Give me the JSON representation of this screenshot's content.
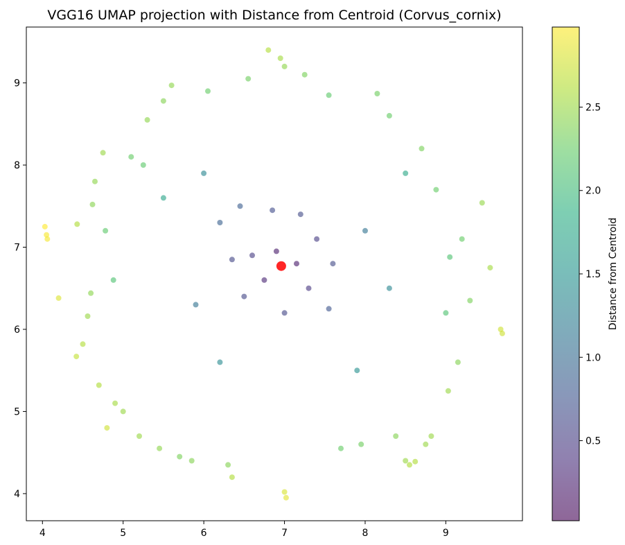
{
  "chart_data": {
    "type": "scatter",
    "title": "VGG16 UMAP projection with Distance from Centroid (Corvus_cornix)",
    "xlabel": "",
    "ylabel": "",
    "xlim": [
      3.8,
      9.95
    ],
    "ylim": [
      3.67,
      9.68
    ],
    "xticks": [
      4,
      5,
      6,
      7,
      8,
      9
    ],
    "yticks": [
      4,
      5,
      6,
      7,
      8,
      9
    ],
    "grid": false,
    "colormap": "viridis",
    "point_alpha": 0.6,
    "colorbar": {
      "label": "Distance from Centroid",
      "range": [
        0.02,
        2.98
      ],
      "ticks": [
        0.5,
        1.0,
        1.5,
        2.0,
        2.5
      ],
      "tick_labels": [
        "0.5",
        "1.0",
        "1.5",
        "2.0",
        "2.5"
      ]
    },
    "centroid": {
      "x": 6.96,
      "y": 6.77,
      "color": "#ff0000"
    },
    "series": [
      {
        "distribution": "approximately radial cloud around the centroid, color mapped to distance from centroid",
        "points": [
          [
            4.03,
            7.25,
            2.98
          ],
          [
            4.05,
            7.15,
            2.95
          ],
          [
            4.06,
            7.1,
            2.94
          ],
          [
            4.2,
            6.38,
            2.82
          ],
          [
            4.43,
            7.28,
            2.6
          ],
          [
            4.42,
            5.67,
            2.7
          ],
          [
            4.5,
            5.82,
            2.62
          ],
          [
            4.56,
            6.16,
            2.5
          ],
          [
            4.6,
            6.44,
            2.43
          ],
          [
            4.62,
            7.52,
            2.42
          ],
          [
            4.65,
            7.8,
            2.45
          ],
          [
            4.7,
            5.32,
            2.6
          ],
          [
            4.75,
            8.15,
            2.5
          ],
          [
            4.8,
            4.8,
            2.75
          ],
          [
            4.9,
            5.1,
            2.55
          ],
          [
            4.78,
            7.2,
            2.2
          ],
          [
            5.0,
            5.0,
            2.5
          ],
          [
            5.1,
            8.1,
            2.25
          ],
          [
            5.2,
            4.7,
            2.5
          ],
          [
            5.25,
            8.0,
            2.2
          ],
          [
            5.3,
            8.55,
            2.45
          ],
          [
            5.45,
            4.55,
            2.45
          ],
          [
            5.5,
            8.78,
            2.4
          ],
          [
            5.6,
            8.97,
            2.45
          ],
          [
            5.7,
            4.45,
            2.35
          ],
          [
            5.85,
            4.4,
            2.4
          ],
          [
            6.05,
            8.9,
            2.25
          ],
          [
            6.3,
            4.35,
            2.4
          ],
          [
            6.35,
            4.2,
            2.6
          ],
          [
            6.55,
            9.05,
            2.3
          ],
          [
            6.8,
            9.4,
            2.62
          ],
          [
            6.95,
            9.3,
            2.55
          ],
          [
            7.0,
            9.2,
            2.45
          ],
          [
            7.0,
            4.02,
            2.8
          ],
          [
            7.02,
            3.95,
            2.85
          ],
          [
            7.25,
            9.1,
            2.35
          ],
          [
            7.55,
            8.85,
            2.2
          ],
          [
            7.7,
            4.55,
            2.25
          ],
          [
            7.95,
            4.6,
            2.3
          ],
          [
            8.15,
            8.87,
            2.3
          ],
          [
            8.3,
            8.6,
            2.25
          ],
          [
            8.38,
            4.7,
            2.4
          ],
          [
            8.5,
            4.4,
            2.5
          ],
          [
            8.55,
            4.35,
            2.6
          ],
          [
            8.62,
            4.39,
            2.6
          ],
          [
            8.75,
            4.6,
            2.5
          ],
          [
            8.82,
            4.7,
            2.5
          ],
          [
            8.7,
            8.2,
            2.35
          ],
          [
            8.88,
            7.7,
            2.25
          ],
          [
            9.03,
            5.25,
            2.5
          ],
          [
            9.15,
            5.6,
            2.4
          ],
          [
            9.2,
            7.1,
            2.25
          ],
          [
            9.3,
            6.35,
            2.35
          ],
          [
            9.45,
            7.54,
            2.48
          ],
          [
            9.55,
            6.75,
            2.55
          ],
          [
            9.68,
            6.0,
            2.75
          ],
          [
            9.7,
            5.95,
            2.75
          ],
          [
            9.05,
            6.88,
            2.1
          ],
          [
            9.0,
            6.2,
            2.1
          ],
          [
            4.88,
            6.6,
            2.1
          ],
          [
            6.2,
            7.3,
            0.9
          ],
          [
            6.45,
            7.5,
            0.85
          ],
          [
            6.6,
            6.9,
            0.5
          ],
          [
            6.75,
            6.6,
            0.3
          ],
          [
            6.9,
            6.95,
            0.2
          ],
          [
            7.15,
            6.8,
            0.2
          ],
          [
            7.3,
            6.5,
            0.45
          ],
          [
            7.4,
            7.1,
            0.5
          ],
          [
            7.2,
            7.4,
            0.65
          ],
          [
            6.85,
            7.45,
            0.68
          ],
          [
            6.5,
            6.4,
            0.6
          ],
          [
            7.0,
            6.2,
            0.6
          ],
          [
            7.6,
            6.8,
            0.65
          ],
          [
            6.35,
            6.85,
            0.6
          ],
          [
            7.55,
            6.25,
            0.75
          ],
          [
            8.0,
            7.2,
            1.1
          ],
          [
            8.3,
            6.5,
            1.35
          ],
          [
            5.9,
            6.3,
            1.1
          ],
          [
            6.0,
            7.9,
            1.35
          ],
          [
            7.9,
            5.5,
            1.45
          ],
          [
            6.2,
            5.6,
            1.4
          ],
          [
            8.5,
            7.9,
            1.75
          ],
          [
            5.5,
            7.6,
            1.7
          ]
        ]
      }
    ]
  }
}
